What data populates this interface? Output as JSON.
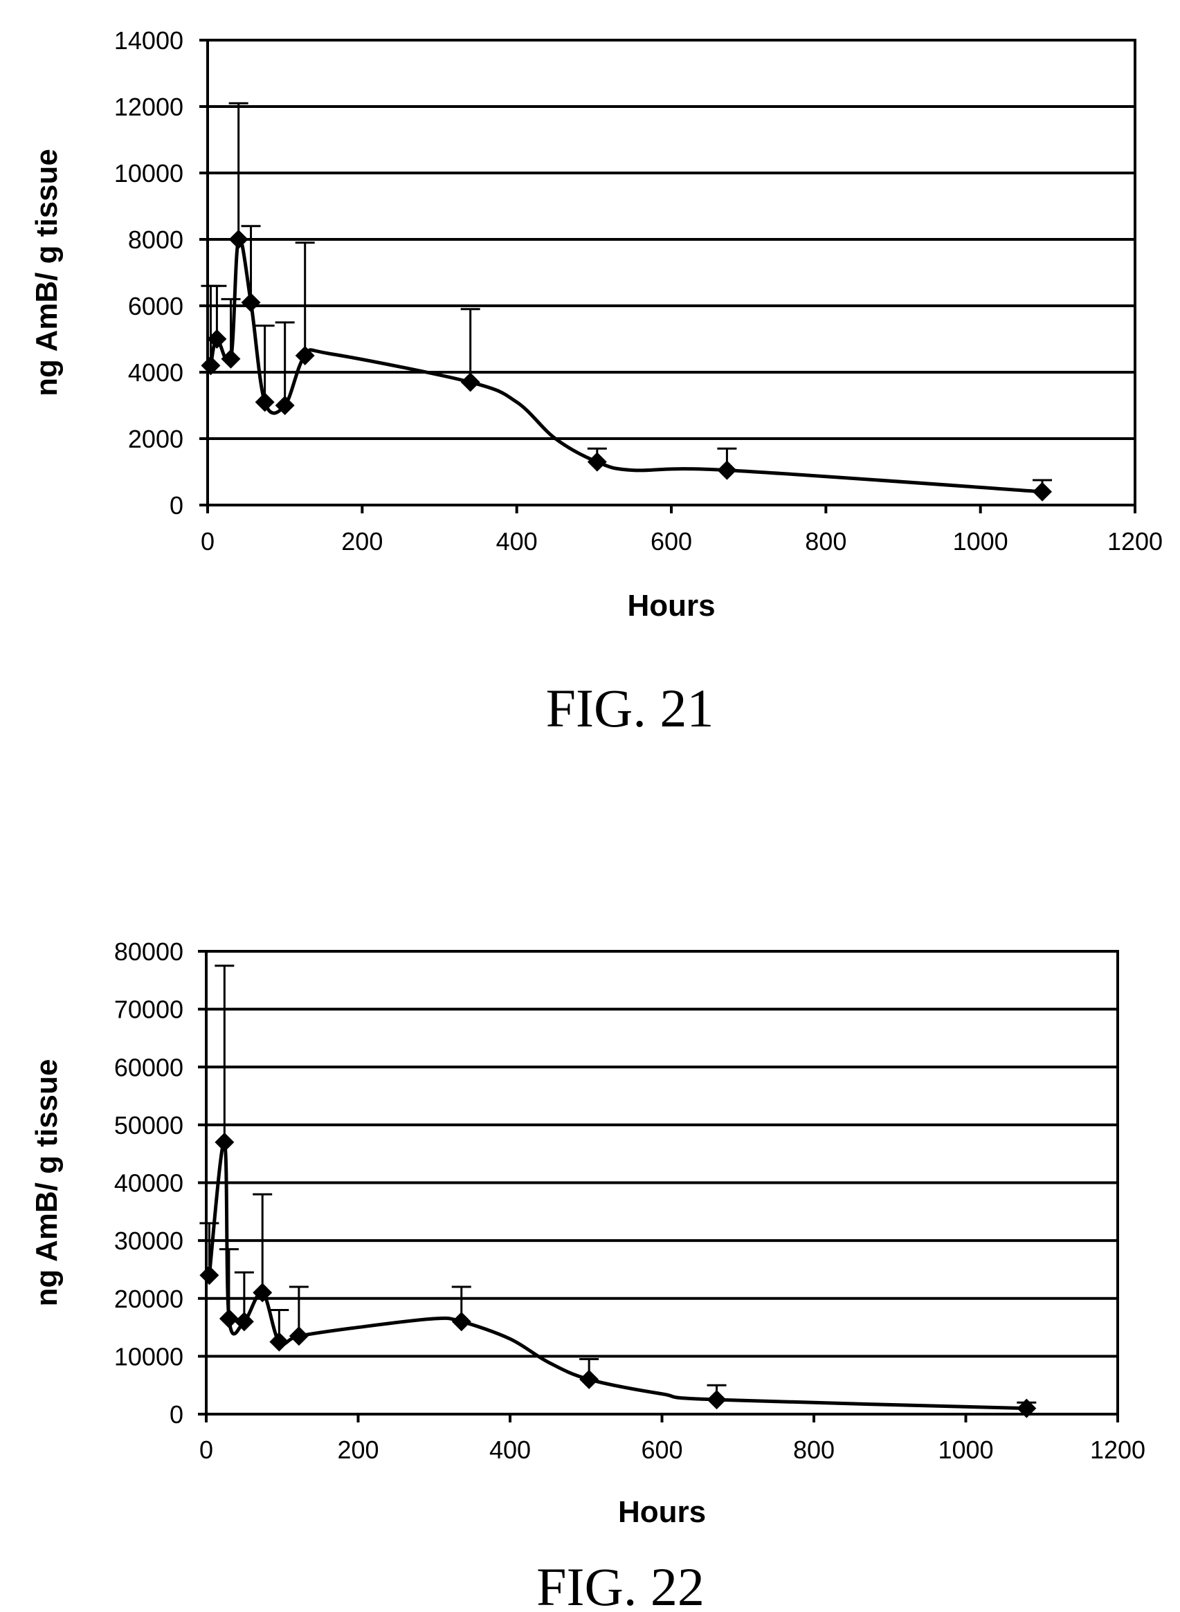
{
  "chart_data": [
    {
      "type": "line",
      "caption": "FIG. 21",
      "xlabel": "Hours",
      "ylabel": "ng AmB/ g tissue",
      "xlim": [
        0,
        1200
      ],
      "ylim": [
        0,
        14000
      ],
      "x_ticks": [
        "0",
        "200",
        "400",
        "600",
        "800",
        "1000",
        "1200"
      ],
      "y_ticks": [
        "0",
        "2000",
        "4000",
        "6000",
        "8000",
        "10000",
        "12000",
        "14000"
      ],
      "grid": "horizontal",
      "x": [
        4,
        12,
        30,
        40,
        56,
        74,
        100,
        126,
        340,
        504,
        672,
        1080
      ],
      "y": [
        4200,
        5000,
        4400,
        8000,
        6100,
        3100,
        3000,
        4500,
        3700,
        1300,
        1050,
        400
      ],
      "error_upper": [
        6600,
        6600,
        6200,
        12100,
        8400,
        5400,
        5500,
        7900,
        5900,
        1700,
        1700,
        750
      ],
      "curve_x": [
        4,
        12,
        30,
        40,
        56,
        74,
        100,
        126,
        160,
        340,
        400,
        450,
        504,
        550,
        672,
        1080
      ],
      "curve_y": [
        4200,
        5000,
        4400,
        8000,
        6100,
        3100,
        3000,
        4500,
        4550,
        3700,
        3100,
        2000,
        1300,
        1050,
        1050,
        400
      ]
    },
    {
      "type": "line",
      "caption": "FIG. 22",
      "xlabel": "Hours",
      "ylabel": "ng AmB/ g tissue",
      "xlim": [
        0,
        1200
      ],
      "ylim": [
        0,
        80000
      ],
      "x_ticks": [
        "0",
        "200",
        "400",
        "600",
        "800",
        "1000",
        "1200"
      ],
      "y_ticks": [
        "0",
        "10000",
        "20000",
        "30000",
        "40000",
        "50000",
        "60000",
        "70000",
        "80000"
      ],
      "grid": "horizontal",
      "x": [
        4,
        24,
        30,
        50,
        74,
        96,
        122,
        336,
        504,
        672,
        1080
      ],
      "y": [
        24000,
        47000,
        16500,
        16000,
        21000,
        12500,
        13500,
        16000,
        6000,
        2500,
        1000
      ],
      "error_upper": [
        33000,
        77500,
        28500,
        24500,
        38000,
        18000,
        22000,
        22000,
        9500,
        5000,
        2000
      ],
      "curve_x": [
        4,
        24,
        30,
        50,
        74,
        96,
        122,
        200,
        300,
        336,
        400,
        450,
        504,
        600,
        672,
        1080
      ],
      "curve_y": [
        24000,
        47000,
        16500,
        16000,
        21000,
        12500,
        13500,
        15000,
        16500,
        16000,
        13000,
        9000,
        6000,
        3500,
        2500,
        1000
      ]
    }
  ]
}
